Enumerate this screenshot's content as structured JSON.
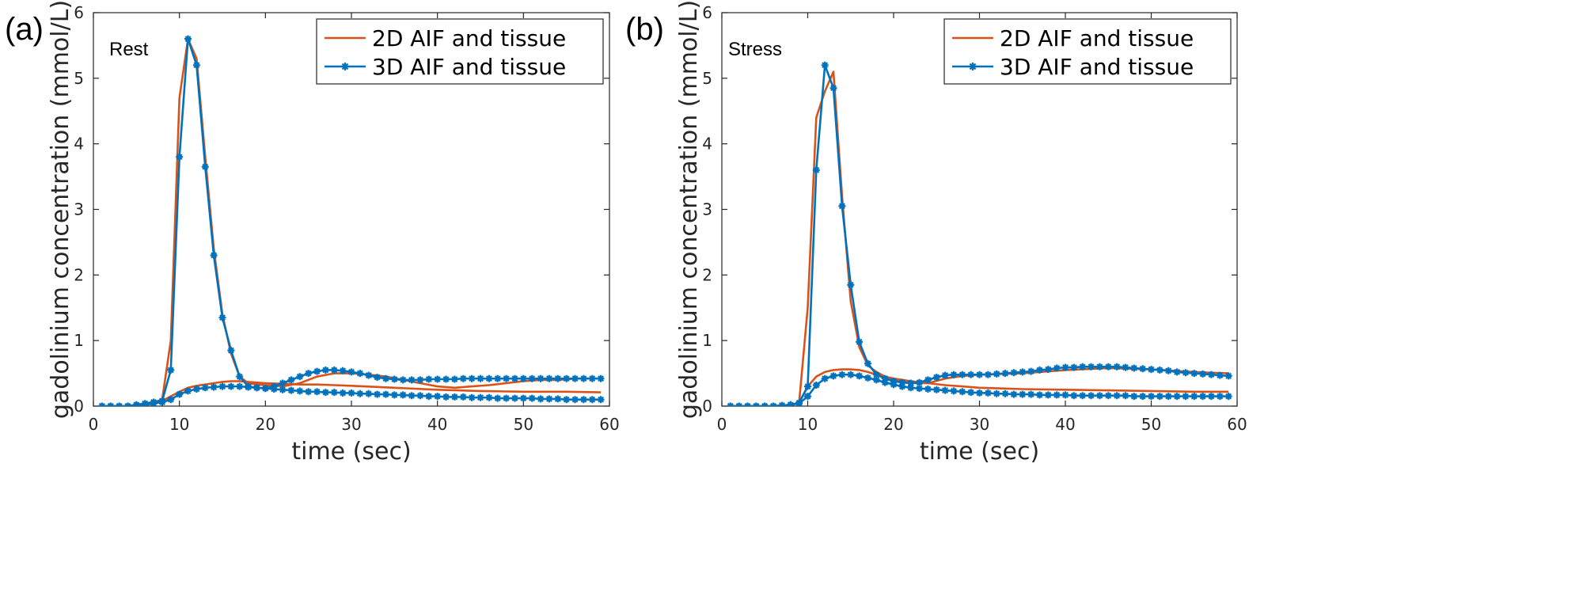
{
  "chart_data": [
    {
      "type": "line",
      "panel_label": "(a)",
      "annotation": "Rest",
      "title": "",
      "xlabel": "time (sec)",
      "ylabel": "gadolinium concentration (mmol/L)",
      "xlim": [
        0,
        60
      ],
      "ylim": [
        0,
        6
      ],
      "xticks": [
        0,
        10,
        20,
        30,
        40,
        50,
        60
      ],
      "yticks": [
        0,
        1,
        2,
        3,
        4,
        5,
        6
      ],
      "grid": false,
      "legend_position": "top-right",
      "legend": [
        "2D AIF and tissue",
        "3D AIF and tissue"
      ],
      "series": [
        {
          "name": "2D AIF and tissue",
          "group": "2D",
          "color": "#D95319",
          "marker": "none",
          "x": [
            1,
            2,
            3,
            4,
            5,
            6,
            7,
            8,
            9,
            10,
            11,
            12,
            13,
            14,
            15,
            16,
            17,
            18,
            19,
            20,
            22,
            24,
            26,
            28,
            30,
            32,
            34,
            36,
            38,
            40,
            42,
            44,
            46,
            48,
            50,
            52,
            54,
            56,
            58,
            59
          ],
          "y": [
            0,
            0,
            0,
            0,
            0.02,
            0.04,
            0.06,
            0.1,
            1.0,
            4.7,
            5.6,
            5.3,
            3.8,
            2.4,
            1.4,
            0.8,
            0.45,
            0.35,
            0.33,
            0.32,
            0.3,
            0.35,
            0.45,
            0.5,
            0.5,
            0.48,
            0.45,
            0.4,
            0.35,
            0.3,
            0.28,
            0.3,
            0.32,
            0.35,
            0.38,
            0.4,
            0.4,
            0.42,
            0.42,
            0.42
          ]
        },
        {
          "name": "2D AIF and tissue",
          "group": "2D",
          "color": "#D95319",
          "marker": "none",
          "x": [
            1,
            2,
            3,
            4,
            5,
            6,
            7,
            8,
            9,
            10,
            11,
            12,
            13,
            14,
            15,
            16,
            17,
            18,
            20,
            22,
            24,
            26,
            28,
            30,
            35,
            40,
            45,
            50,
            55,
            59
          ],
          "y": [
            0,
            0,
            0,
            0,
            0.01,
            0.02,
            0.04,
            0.08,
            0.15,
            0.22,
            0.28,
            0.31,
            0.33,
            0.35,
            0.37,
            0.38,
            0.38,
            0.37,
            0.35,
            0.34,
            0.33,
            0.33,
            0.32,
            0.31,
            0.28,
            0.25,
            0.23,
            0.22,
            0.22,
            0.21
          ]
        },
        {
          "name": "3D AIF and tissue",
          "group": "3D",
          "color": "#0072BD",
          "marker": "star",
          "x": [
            1,
            2,
            3,
            4,
            5,
            6,
            7,
            8,
            9,
            10,
            11,
            12,
            13,
            14,
            15,
            16,
            17,
            18,
            19,
            20,
            21,
            22,
            23,
            24,
            25,
            26,
            27,
            28,
            29,
            30,
            31,
            32,
            33,
            34,
            35,
            36,
            37,
            38,
            39,
            40,
            41,
            42,
            43,
            44,
            45,
            46,
            47,
            48,
            49,
            50,
            51,
            52,
            53,
            54,
            55,
            56,
            57,
            58,
            59
          ],
          "y": [
            0,
            0,
            0,
            0,
            0.02,
            0.04,
            0.06,
            0.08,
            0.55,
            3.8,
            5.6,
            5.2,
            3.65,
            2.3,
            1.35,
            0.85,
            0.45,
            0.3,
            0.28,
            0.27,
            0.3,
            0.35,
            0.4,
            0.45,
            0.5,
            0.53,
            0.55,
            0.55,
            0.54,
            0.52,
            0.5,
            0.47,
            0.44,
            0.42,
            0.41,
            0.4,
            0.4,
            0.4,
            0.41,
            0.41,
            0.41,
            0.41,
            0.42,
            0.42,
            0.42,
            0.42,
            0.42,
            0.42,
            0.42,
            0.42,
            0.42,
            0.42,
            0.42,
            0.42,
            0.42,
            0.42,
            0.42,
            0.42,
            0.42
          ]
        },
        {
          "name": "3D AIF and tissue",
          "group": "3D",
          "color": "#0072BD",
          "marker": "star",
          "x": [
            1,
            2,
            3,
            4,
            5,
            6,
            7,
            8,
            9,
            10,
            11,
            12,
            13,
            14,
            15,
            16,
            17,
            18,
            19,
            20,
            21,
            22,
            23,
            24,
            25,
            26,
            27,
            28,
            29,
            30,
            31,
            32,
            33,
            34,
            35,
            36,
            37,
            38,
            39,
            40,
            41,
            42,
            43,
            44,
            45,
            46,
            47,
            48,
            49,
            50,
            51,
            52,
            53,
            54,
            55,
            56,
            57,
            58,
            59
          ],
          "y": [
            0,
            0,
            0,
            0,
            0.01,
            0.02,
            0.04,
            0.06,
            0.1,
            0.18,
            0.23,
            0.26,
            0.28,
            0.29,
            0.3,
            0.3,
            0.3,
            0.29,
            0.28,
            0.27,
            0.26,
            0.25,
            0.24,
            0.23,
            0.22,
            0.22,
            0.21,
            0.21,
            0.2,
            0.2,
            0.19,
            0.19,
            0.18,
            0.18,
            0.17,
            0.17,
            0.16,
            0.16,
            0.15,
            0.15,
            0.14,
            0.14,
            0.14,
            0.13,
            0.13,
            0.13,
            0.12,
            0.12,
            0.12,
            0.12,
            0.12,
            0.11,
            0.11,
            0.11,
            0.1,
            0.1,
            0.1,
            0.1,
            0.1
          ]
        }
      ]
    },
    {
      "type": "line",
      "panel_label": "(b)",
      "annotation": "Stress",
      "title": "",
      "xlabel": "time (sec)",
      "ylabel": "gadolinium concentration (mmol/L)",
      "xlim": [
        0,
        60
      ],
      "ylim": [
        0,
        6
      ],
      "xticks": [
        0,
        10,
        20,
        30,
        40,
        50,
        60
      ],
      "yticks": [
        0,
        1,
        2,
        3,
        4,
        5,
        6
      ],
      "grid": false,
      "legend_position": "top-right",
      "legend": [
        "2D AIF and tissue",
        "3D AIF and tissue"
      ],
      "series": [
        {
          "name": "2D AIF and tissue",
          "group": "2D",
          "color": "#D95319",
          "marker": "none",
          "x": [
            1,
            2,
            3,
            4,
            5,
            6,
            7,
            8,
            9,
            10,
            11,
            12,
            13,
            14,
            15,
            16,
            17,
            18,
            19,
            20,
            22,
            24,
            26,
            28,
            30,
            35,
            40,
            45,
            50,
            55,
            59
          ],
          "y": [
            0,
            0,
            0,
            0,
            0,
            0,
            0.01,
            0.02,
            0.05,
            1.5,
            4.4,
            4.8,
            5.1,
            3.2,
            1.6,
            0.9,
            0.62,
            0.52,
            0.45,
            0.4,
            0.35,
            0.35,
            0.42,
            0.46,
            0.48,
            0.5,
            0.55,
            0.58,
            0.56,
            0.52,
            0.5
          ]
        },
        {
          "name": "2D AIF and tissue",
          "group": "2D",
          "color": "#D95319",
          "marker": "none",
          "x": [
            1,
            2,
            3,
            4,
            5,
            6,
            7,
            8,
            9,
            10,
            11,
            12,
            13,
            14,
            15,
            16,
            17,
            18,
            20,
            22,
            24,
            26,
            28,
            30,
            35,
            40,
            45,
            50,
            55,
            59
          ],
          "y": [
            0,
            0,
            0,
            0,
            0,
            0,
            0.01,
            0.02,
            0.05,
            0.3,
            0.45,
            0.52,
            0.55,
            0.56,
            0.56,
            0.55,
            0.52,
            0.48,
            0.42,
            0.38,
            0.35,
            0.32,
            0.3,
            0.28,
            0.26,
            0.25,
            0.24,
            0.23,
            0.22,
            0.22
          ]
        },
        {
          "name": "3D AIF and tissue",
          "group": "3D",
          "color": "#0072BD",
          "marker": "star",
          "x": [
            1,
            2,
            3,
            4,
            5,
            6,
            7,
            8,
            9,
            10,
            11,
            12,
            13,
            14,
            15,
            16,
            17,
            18,
            19,
            20,
            21,
            22,
            23,
            24,
            25,
            26,
            27,
            28,
            29,
            30,
            31,
            32,
            33,
            34,
            35,
            36,
            37,
            38,
            39,
            40,
            41,
            42,
            43,
            44,
            45,
            46,
            47,
            48,
            49,
            50,
            51,
            52,
            53,
            54,
            55,
            56,
            57,
            58,
            59
          ],
          "y": [
            0,
            0,
            0,
            0,
            0,
            0,
            0.01,
            0.02,
            0.05,
            0.3,
            3.6,
            5.2,
            4.85,
            3.05,
            1.85,
            0.98,
            0.65,
            0.48,
            0.42,
            0.38,
            0.36,
            0.35,
            0.36,
            0.4,
            0.44,
            0.47,
            0.48,
            0.48,
            0.48,
            0.48,
            0.48,
            0.49,
            0.5,
            0.51,
            0.52,
            0.53,
            0.55,
            0.56,
            0.58,
            0.59,
            0.59,
            0.6,
            0.6,
            0.6,
            0.6,
            0.6,
            0.59,
            0.58,
            0.57,
            0.56,
            0.55,
            0.54,
            0.52,
            0.51,
            0.5,
            0.49,
            0.48,
            0.47,
            0.46
          ]
        },
        {
          "name": "3D AIF and tissue",
          "group": "3D",
          "color": "#0072BD",
          "marker": "star",
          "x": [
            1,
            2,
            3,
            4,
            5,
            6,
            7,
            8,
            9,
            10,
            11,
            12,
            13,
            14,
            15,
            16,
            17,
            18,
            19,
            20,
            21,
            22,
            23,
            24,
            25,
            26,
            27,
            28,
            29,
            30,
            31,
            32,
            33,
            34,
            35,
            36,
            37,
            38,
            39,
            40,
            41,
            42,
            43,
            44,
            45,
            46,
            47,
            48,
            49,
            50,
            51,
            52,
            53,
            54,
            55,
            56,
            57,
            58,
            59
          ],
          "y": [
            0,
            0,
            0,
            0,
            0,
            0,
            0.01,
            0.02,
            0.04,
            0.15,
            0.32,
            0.42,
            0.46,
            0.48,
            0.48,
            0.46,
            0.43,
            0.4,
            0.36,
            0.33,
            0.3,
            0.28,
            0.27,
            0.26,
            0.25,
            0.24,
            0.23,
            0.22,
            0.21,
            0.2,
            0.2,
            0.19,
            0.19,
            0.18,
            0.18,
            0.18,
            0.17,
            0.17,
            0.17,
            0.17,
            0.16,
            0.16,
            0.16,
            0.16,
            0.16,
            0.16,
            0.16,
            0.15,
            0.15,
            0.15,
            0.15,
            0.15,
            0.15,
            0.15,
            0.15,
            0.15,
            0.15,
            0.15,
            0.15
          ]
        }
      ]
    }
  ]
}
